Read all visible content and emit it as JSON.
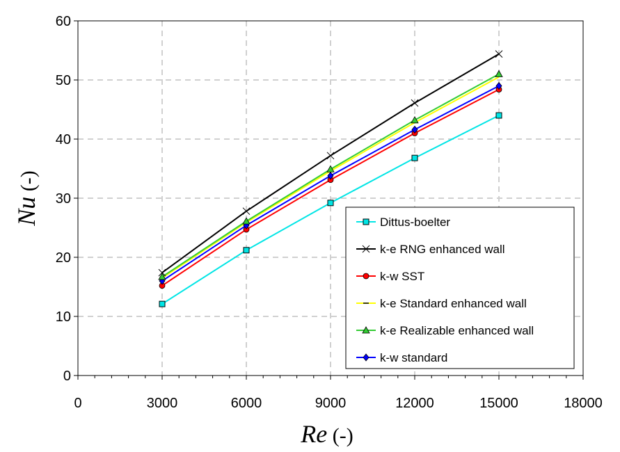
{
  "chart_data": {
    "type": "line",
    "xlabel_italic": "Re",
    "xlabel_unit": " (-)",
    "ylabel_italic": "Nu",
    "ylabel_unit": " (-)",
    "xlim": [
      0,
      18000
    ],
    "ylim": [
      0,
      60
    ],
    "xticks": [
      "0",
      "3000",
      "6000",
      "9000",
      "12000",
      "15000",
      "18000"
    ],
    "yticks": [
      "0",
      "10",
      "20",
      "30",
      "40",
      "50",
      "60"
    ],
    "grid": true,
    "legend_position": "bottom-right",
    "x": [
      3000,
      6000,
      9000,
      12000,
      15000
    ],
    "series": [
      {
        "name": "Dittus-boelter",
        "color": "#00e5e5",
        "marker": "square",
        "values": [
          12.1,
          21.2,
          29.2,
          36.8,
          44.0
        ]
      },
      {
        "name": "k-e RNG enhanced wall",
        "color": "#000000",
        "marker": "x",
        "values": [
          17.4,
          27.8,
          37.2,
          46.1,
          54.4
        ]
      },
      {
        "name": "k-w SST",
        "color": "#ff0000",
        "marker": "circle",
        "values": [
          15.2,
          24.7,
          33.1,
          41.0,
          48.4
        ]
      },
      {
        "name": "k-e Standard enhanced wall",
        "color": "#ffff00",
        "marker": "dash",
        "values": [
          16.5,
          25.9,
          34.6,
          42.8,
          50.5
        ]
      },
      {
        "name": "k-e Realizable enhanced wall",
        "color": "#33cc33",
        "marker": "triangle",
        "values": [
          16.7,
          26.1,
          34.9,
          43.2,
          51.0
        ]
      },
      {
        "name": "k-w standard",
        "color": "#0000ff",
        "marker": "diamond",
        "values": [
          16.0,
          25.4,
          33.8,
          41.6,
          49.0
        ]
      }
    ]
  }
}
